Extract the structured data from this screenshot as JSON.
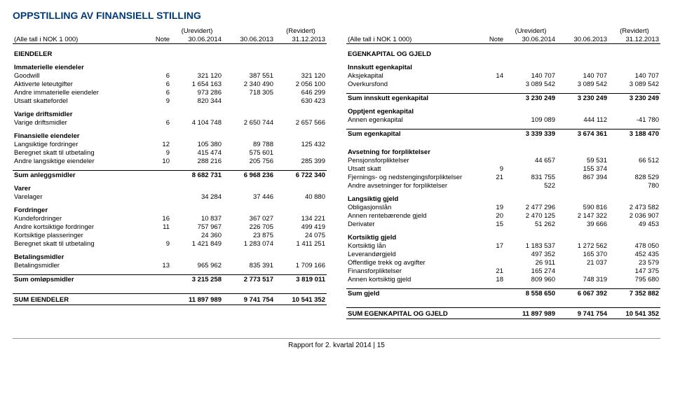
{
  "title": "OPPSTILLING AV FINANSIELL STILLING",
  "header": {
    "all_figures": "(Alle tall i NOK 1 000)",
    "note": "Note",
    "unrev": "(Urevidert)",
    "rev": "(Revidert)",
    "d1": "30.06.2014",
    "d2": "30.06.2013",
    "d3": "31.12.2013"
  },
  "left": {
    "section_assets": "EIENDELER",
    "intangible_h": "Immaterielle eiendeler",
    "goodwill": {
      "l": "Goodwill",
      "n": "6",
      "a": "321 120",
      "b": "387 551",
      "c": "321 120"
    },
    "aktiverte": {
      "l": "Aktiverte leteutgifter",
      "n": "6",
      "a": "1 654 163",
      "b": "2 340 490",
      "c": "2 056 100"
    },
    "andre_imm": {
      "l": "Andre immaterielle eiendeler",
      "n": "6",
      "a": "973 286",
      "b": "718 305",
      "c": "646 299"
    },
    "utsatt_sk": {
      "l": "Utsatt skattefordel",
      "n": "9",
      "a": "820 344",
      "b": "",
      "c": "630 423"
    },
    "varige_h": "Varige driftsmidler",
    "varige": {
      "l": "Varige driftsmidler",
      "n": "6",
      "a": "4 104 748",
      "b": "2 650 744",
      "c": "2 657 566"
    },
    "fin_h": "Finansielle eiendeler",
    "langs_f": {
      "l": "Langsiktige fordringer",
      "n": "12",
      "a": "105 380",
      "b": "89 788",
      "c": "125 432"
    },
    "beregnet": {
      "l": "Beregnet skatt til utbetaling",
      "n": "9",
      "a": "415 474",
      "b": "575 601",
      "c": ""
    },
    "andre_l": {
      "l": "Andre langsiktige eiendeler",
      "n": "10",
      "a": "288 216",
      "b": "205 756",
      "c": "285 399"
    },
    "sum_anl": {
      "l": "Sum anleggsmidler",
      "a": "8 682 731",
      "b": "6 968 236",
      "c": "6 722 340"
    },
    "varer_h": "Varer",
    "varelager": {
      "l": "Varelager",
      "a": "34 284",
      "b": "37 446",
      "c": "40 880"
    },
    "fordr_h": "Fordringer",
    "kundef": {
      "l": "Kundefordringer",
      "n": "16",
      "a": "10 837",
      "b": "367 027",
      "c": "134 221"
    },
    "andre_kf": {
      "l": "Andre kortsiktige fordringer",
      "n": "11",
      "a": "757 967",
      "b": "226 705",
      "c": "499 419"
    },
    "kort_pl": {
      "l": "Kortsiktige plasseringer",
      "a": "24 360",
      "b": "23 875",
      "c": "24 075"
    },
    "ber_sk_ut": {
      "l": "Beregnet skatt til utbetaling",
      "n": "9",
      "a": "1 421 849",
      "b": "1 283 074",
      "c": "1 411 251"
    },
    "bet_h": "Betalingsmidler",
    "betm": {
      "l": "Betalingsmidler",
      "n": "13",
      "a": "965 962",
      "b": "835 391",
      "c": "1 709 166"
    },
    "sum_oml": {
      "l": "Sum omløpsmidler",
      "a": "3 215 258",
      "b": "2 773 517",
      "c": "3 819 011"
    },
    "sum_eiend": {
      "l": "SUM EIENDELER",
      "a": "11 897 989",
      "b": "9 741 754",
      "c": "10 541 352"
    }
  },
  "right": {
    "section_eq": "EGENKAPITAL OG GJELD",
    "innsk_h": "Innskutt egenkapital",
    "aksje": {
      "l": "Aksjekapital",
      "n": "14",
      "a": "140 707",
      "b": "140 707",
      "c": "140 707"
    },
    "overkurs": {
      "l": "Overkursfond",
      "a": "3 089 542",
      "b": "3 089 542",
      "c": "3 089 542"
    },
    "sum_innsk": {
      "l": "Sum innskutt egenkapital",
      "a": "3 230 249",
      "b": "3 230 249",
      "c": "3 230 249"
    },
    "oppt_h": "Opptjent egenkapital",
    "annen_eg": {
      "l": "Annen egenkapital",
      "a": "109 089",
      "b": "444 112",
      "c": "-41 780"
    },
    "sum_eg": {
      "l": "Sum egenkapital",
      "a": "3 339 339",
      "b": "3 674 361",
      "c": "3 188 470"
    },
    "avs_h": "Avsetning for forpliktelser",
    "pensjon": {
      "l": "Pensjonsforpliktelser",
      "a": "44 657",
      "b": "59 531",
      "c": "66 512"
    },
    "utsatt_sk": {
      "l": "Utsatt skatt",
      "n": "9",
      "a": "",
      "b": "155 374",
      "c": ""
    },
    "fjern": {
      "l": "Fjernings- og nedstengingsforpliktelser",
      "n": "21",
      "a": "831 755",
      "b": "867 394",
      "c": "828 529"
    },
    "andre_avs": {
      "l": "Andre avsetninger for forpliktelser",
      "a": "522",
      "b": "",
      "c": "780"
    },
    "lang_h": "Langsiktig gjeld",
    "oblig": {
      "l": "Obligasjonslån",
      "n": "19",
      "a": "2 477 296",
      "b": "590 816",
      "c": "2 473 582"
    },
    "annen_r": {
      "l": "Annen rentebærende gjeld",
      "n": "20",
      "a": "2 470 125",
      "b": "2 147 322",
      "c": "2 036 907"
    },
    "deriv": {
      "l": "Derivater",
      "n": "15",
      "a": "51 262",
      "b": "39 666",
      "c": "49 453"
    },
    "kort_h": "Kortsiktig gjeld",
    "kort_lan": {
      "l": "Kortsiktig lån",
      "n": "17",
      "a": "1 183 537",
      "b": "1 272 562",
      "c": "478 050"
    },
    "lev": {
      "l": "Leverandørgjeld",
      "a": "497 352",
      "b": "165 370",
      "c": "452 435"
    },
    "off_tr": {
      "l": "Offentlige trekk og avgifter",
      "a": "26 911",
      "b": "21 037",
      "c": "23 579"
    },
    "fin_for": {
      "l": "Finansforpliktelser",
      "n": "21",
      "a": "165 274",
      "b": "",
      "c": "147 375"
    },
    "annen_kg": {
      "l": "Annen kortsiktig gjeld",
      "n": "18",
      "a": "809 960",
      "b": "748 319",
      "c": "795 680"
    },
    "sum_gj": {
      "l": "Sum gjeld",
      "a": "8 558 650",
      "b": "6 067 392",
      "c": "7 352 882"
    },
    "sum_eq_gj": {
      "l": "SUM EGENKAPITAL OG GJELD",
      "a": "11 897 989",
      "b": "9 741 754",
      "c": "10 541 352"
    }
  },
  "footer": "Rapport for 2. kvartal 2014 | 15"
}
